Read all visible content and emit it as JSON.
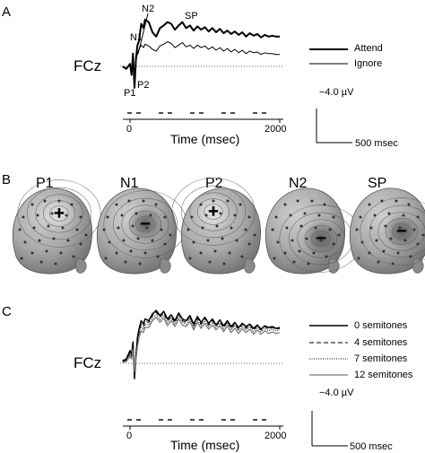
{
  "panels": {
    "a": {
      "letter": "A",
      "channel": "FCz",
      "peaks": [
        "N2",
        "N1",
        "SP",
        "P1",
        "P2"
      ],
      "xlabel": "Time (msec)",
      "ticks": [
        "0",
        "2000"
      ],
      "legend": [
        "Attend",
        "Ignore"
      ],
      "scale_v": "−4.0 µV",
      "scale_t": "500 msec"
    },
    "b": {
      "letter": "B",
      "components": [
        "P1",
        "N1",
        "P2",
        "N2",
        "SP"
      ],
      "polarity": [
        "+",
        "−",
        "+",
        "−",
        "−"
      ]
    },
    "c": {
      "letter": "C",
      "channel": "FCz",
      "xlabel": "Time (msec)",
      "ticks": [
        "0",
        "2000"
      ],
      "legend": [
        "0 semitones",
        "4 semitones",
        "7 semitones",
        "12 semitones"
      ],
      "scale_v": "−4.0 µV",
      "scale_t": "500 msec"
    }
  },
  "chart_data": [
    {
      "type": "line",
      "x_unit": "msec",
      "xlim": [
        -100,
        2000
      ],
      "y_unit": "µV (negative up)",
      "x": [
        -100,
        -50,
        0,
        20,
        40,
        60,
        80,
        100,
        120,
        150,
        180,
        200,
        250,
        300,
        350,
        400,
        450,
        500,
        550,
        600,
        650,
        700,
        750,
        800,
        850,
        900,
        950,
        1000,
        1050,
        1100,
        1150,
        1200,
        1250,
        1300,
        1350,
        1400,
        1450,
        1500,
        1550,
        1600,
        1650,
        1700,
        1750,
        1800,
        1850,
        1900,
        1950,
        2000
      ],
      "series": [
        {
          "name": "Attend",
          "values": [
            0,
            0.3,
            -0.3,
            1.0,
            -1.5,
            2.5,
            -1.0,
            -2.5,
            -3.0,
            -5.0,
            -4.5,
            -5.5,
            -5.2,
            -4.0,
            -3.5,
            -4.5,
            -4.8,
            -5.2,
            -5.0,
            -4.3,
            -4.8,
            -5.2,
            -4.5,
            -4.8,
            -4.2,
            -4.7,
            -4.3,
            -4.6,
            -4.1,
            -4.5,
            -4.0,
            -4.4,
            -3.9,
            -4.2,
            -3.8,
            -4.1,
            -3.7,
            -4.0,
            -3.5,
            -3.9,
            -3.6,
            -3.8,
            -3.4,
            -3.7,
            -3.5,
            -3.6,
            -3.5,
            -3.5
          ]
        },
        {
          "name": "Ignore",
          "values": [
            0,
            0.2,
            -0.2,
            0.8,
            -1.2,
            1.8,
            -0.6,
            -1.5,
            -2.0,
            -2.5,
            -2.2,
            -2.6,
            -2.4,
            -2.0,
            -1.8,
            -2.4,
            -2.6,
            -2.9,
            -2.7,
            -2.2,
            -2.5,
            -2.8,
            -2.3,
            -2.5,
            -2.1,
            -2.5,
            -2.2,
            -2.4,
            -2.0,
            -2.3,
            -1.9,
            -2.2,
            -1.8,
            -2.1,
            -1.7,
            -2.0,
            -1.6,
            -1.9,
            -1.5,
            -1.8,
            -1.6,
            -1.7,
            -1.4,
            -1.6,
            -1.5,
            -1.5,
            -1.4,
            -1.4
          ]
        }
      ]
    },
    {
      "type": "line",
      "x_unit": "msec",
      "xlim": [
        -100,
        2000
      ],
      "y_unit": "µV (negative up)",
      "x": [
        -100,
        -50,
        0,
        20,
        40,
        60,
        80,
        100,
        120,
        150,
        180,
        200,
        250,
        300,
        350,
        400,
        450,
        500,
        550,
        600,
        650,
        700,
        750,
        800,
        850,
        900,
        950,
        1000,
        1050,
        1100,
        1150,
        1200,
        1250,
        1300,
        1350,
        1400,
        1450,
        1500,
        1550,
        1600,
        1650,
        1700,
        1750,
        1800,
        1850,
        1900,
        1950,
        2000
      ],
      "series": [
        {
          "name": "0 semitones",
          "values": [
            -0.3,
            -0.5,
            -1.5,
            -1.0,
            -2.5,
            1.8,
            -1.0,
            -3.0,
            -4.0,
            -5.0,
            -4.6,
            -5.2,
            -5.0,
            -5.8,
            -6.2,
            -5.6,
            -6.1,
            -5.2,
            -5.7,
            -5.0,
            -5.9,
            -5.2,
            -5.0,
            -5.6,
            -4.6,
            -5.5,
            -4.8,
            -5.4,
            -4.7,
            -5.2,
            -4.5,
            -5.1,
            -4.4,
            -5.0,
            -4.3,
            -4.8,
            -4.2,
            -4.7,
            -4.3,
            -4.6,
            -4.1,
            -4.5,
            -4.0,
            -4.4,
            -4.2,
            -4.3,
            -4.1,
            -4.2
          ]
        },
        {
          "name": "4 semitones",
          "values": [
            -0.2,
            -0.4,
            -1.2,
            -0.8,
            -2.2,
            1.5,
            -0.8,
            -2.6,
            -3.6,
            -4.6,
            -4.3,
            -4.9,
            -4.8,
            -5.6,
            -6.0,
            -5.4,
            -5.9,
            -5.0,
            -5.5,
            -4.8,
            -5.8,
            -5.0,
            -4.8,
            -5.5,
            -4.4,
            -5.3,
            -4.6,
            -5.3,
            -4.5,
            -5.0,
            -4.4,
            -4.9,
            -4.2,
            -4.9,
            -4.1,
            -4.6,
            -4.0,
            -4.6,
            -4.1,
            -4.5,
            -3.9,
            -4.4,
            -3.9,
            -4.3,
            -4.0,
            -4.2,
            -4.0,
            -4.1
          ]
        },
        {
          "name": "7 semitones",
          "values": [
            -0.2,
            -0.3,
            -1.0,
            -0.7,
            -2.0,
            1.2,
            -0.7,
            -2.3,
            -3.3,
            -4.2,
            -4.0,
            -4.6,
            -4.5,
            -5.3,
            -5.7,
            -5.1,
            -5.6,
            -4.7,
            -5.3,
            -4.6,
            -5.5,
            -4.8,
            -4.6,
            -5.2,
            -4.2,
            -5.1,
            -4.4,
            -5.0,
            -4.3,
            -4.8,
            -4.2,
            -4.7,
            -4.0,
            -4.7,
            -3.9,
            -4.4,
            -3.8,
            -4.4,
            -3.9,
            -4.3,
            -3.7,
            -4.2,
            -3.7,
            -4.1,
            -3.8,
            -4.0,
            -3.8,
            -3.9
          ]
        },
        {
          "name": "12 semitones",
          "values": [
            -0.1,
            -0.2,
            -0.8,
            -0.5,
            -1.7,
            1.0,
            -0.5,
            -2.0,
            -3.0,
            -3.8,
            -3.6,
            -4.2,
            -4.2,
            -5.0,
            -5.4,
            -4.8,
            -5.3,
            -4.4,
            -5.0,
            -4.3,
            -5.2,
            -4.5,
            -4.3,
            -4.9,
            -3.9,
            -4.8,
            -4.1,
            -4.7,
            -4.0,
            -4.5,
            -3.9,
            -4.4,
            -3.7,
            -4.4,
            -3.6,
            -4.1,
            -3.5,
            -4.1,
            -3.6,
            -4.0,
            -3.4,
            -3.9,
            -3.4,
            -3.8,
            -3.5,
            -3.7,
            -3.5,
            -3.6
          ]
        }
      ]
    }
  ]
}
